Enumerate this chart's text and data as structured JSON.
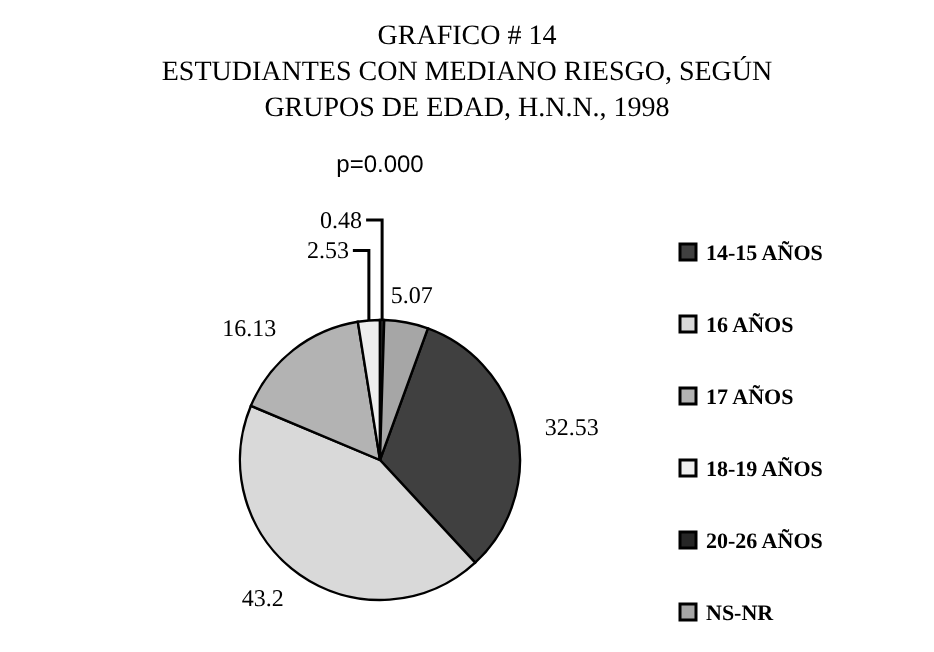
{
  "chart_data": {
    "type": "pie",
    "title": "GRAFICO # 14\nESTUDIANTES CON MEDIANO RIESGO, SEGÚN\nGRUPOS DE EDAD, H.N.N., 1998",
    "subtitle": "p=0.000",
    "categories": [
      "14-15 AÑOS",
      "16 AÑOS",
      "17 AÑOS",
      "18-19 AÑOS",
      "20-26 AÑOS",
      "NS-NR"
    ],
    "values": [
      32.53,
      43.2,
      16.13,
      2.53,
      0.48,
      5.07
    ],
    "colors": [
      "#404040",
      "#d9d9d9",
      "#b3b3b3",
      "#eeeeee",
      "#262626",
      "#a6a6a6"
    ],
    "data_labels": true,
    "legend": "right"
  }
}
